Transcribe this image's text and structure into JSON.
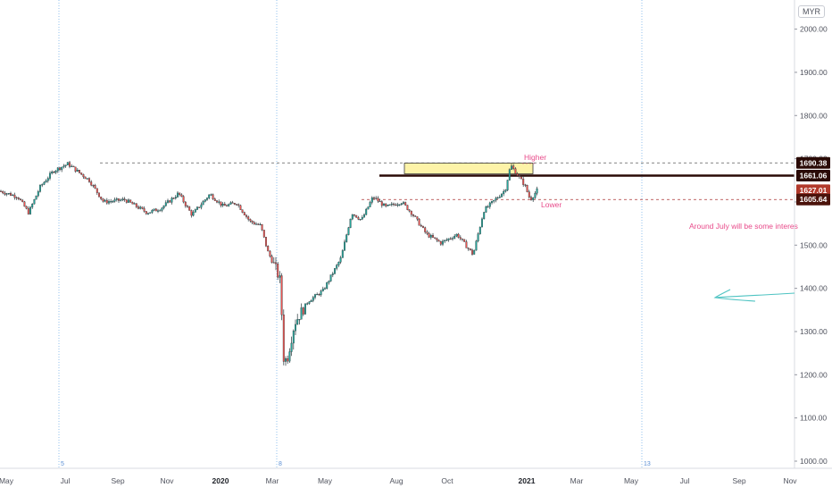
{
  "currency": "MYR",
  "colors": {
    "up": "#26a69a",
    "down": "#ef5350",
    "candle": "#26363a",
    "axis_text": "#50535e",
    "grid_vline": "#90c0ec",
    "annotation_text": "#e84a8a",
    "zone_fill": "#fdf3a8",
    "line_dark": "#2a0a06",
    "arrow": "#4ec3c2",
    "label_1690": "#2a0a06",
    "label_1661": "#2a0a06",
    "label_1627": "#b23a2c",
    "label_1605": "#4b130b"
  },
  "chart_data": {
    "type": "candlestick",
    "title": "",
    "xlabel": "",
    "ylabel": "",
    "y_axis_side": "right",
    "ylim": [
      980,
      2080
    ],
    "y_ticks": [
      "2000.00",
      "1900.00",
      "1800.00",
      "1700.00",
      "1600.00",
      "1500.00",
      "1400.00",
      "1300.00",
      "1200.00",
      "1100.00",
      "1000.00"
    ],
    "x_ticks": [
      "May",
      "Jul",
      "Sep",
      "Nov",
      "2020",
      "Mar",
      "May",
      "Aug",
      "Oct",
      "2021",
      "Mar",
      "May",
      "Jul",
      "Sep",
      "Nov"
    ],
    "x_tick_bold": [
      "2020",
      "2021"
    ],
    "session_markers": [
      "5",
      "8",
      "13"
    ],
    "price_labels": [
      {
        "text": "1690.38",
        "value": 1690.38
      },
      {
        "text": "1661.06",
        "value": 1661.06
      },
      {
        "text": "1627.01",
        "value": 1627.01
      },
      {
        "text": "1605.64",
        "value": 1605.64
      }
    ],
    "series_approx": [
      {
        "month": "2019-04",
        "close": 1625
      },
      {
        "month": "2019-05",
        "close": 1622
      },
      {
        "month": "2019-06",
        "close": 1652
      },
      {
        "month": "2019-07",
        "close": 1688
      },
      {
        "month": "2019-08",
        "close": 1640
      },
      {
        "month": "2019-09",
        "close": 1600
      },
      {
        "month": "2019-10",
        "close": 1595
      },
      {
        "month": "2019-11",
        "close": 1580
      },
      {
        "month": "2019-12",
        "close": 1605
      },
      {
        "month": "2020-01",
        "close": 1610
      },
      {
        "month": "2020-02",
        "close": 1530
      },
      {
        "month": "2020-03",
        "close": 1260
      },
      {
        "month": "2020-04",
        "close": 1370
      },
      {
        "month": "2020-05",
        "close": 1425
      },
      {
        "month": "2020-06",
        "close": 1565
      },
      {
        "month": "2020-07",
        "close": 1605
      },
      {
        "month": "2020-08",
        "close": 1570
      },
      {
        "month": "2020-09",
        "close": 1500
      },
      {
        "month": "2020-10",
        "close": 1515
      },
      {
        "month": "2020-11",
        "close": 1590
      },
      {
        "month": "2020-12",
        "close": 1682
      },
      {
        "month": "2021-01",
        "close": 1627
      }
    ],
    "annotations": [
      {
        "text": "Higher",
        "kind": "label"
      },
      {
        "text": "Lower",
        "kind": "label"
      },
      {
        "text": "Around July will be some interes",
        "kind": "note"
      }
    ],
    "levels": [
      {
        "value": 1690.38,
        "style": "dashed"
      },
      {
        "value": 1661.06,
        "style": "solid-thick"
      },
      {
        "value": 1605.64,
        "style": "dashed"
      }
    ],
    "zone": {
      "from": 1665,
      "to": 1690
    },
    "grid": false
  }
}
